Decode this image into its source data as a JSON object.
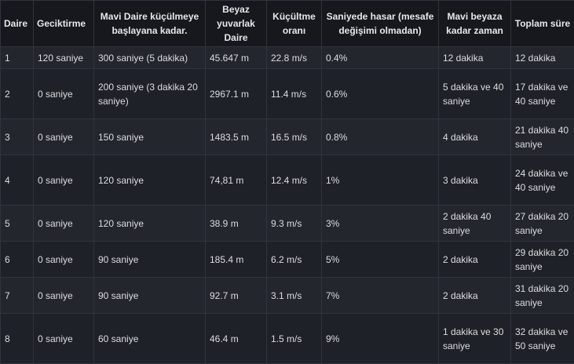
{
  "headers": [
    "Daire",
    "Geciktirme",
    "Mavi Daire küçülmeye başlayana kadar.",
    "Beyaz yuvarlak Daire",
    "Küçültme oranı",
    "Saniyede hasar (mesafe değişimi olmadan)",
    "Mavi beyaza kadar zaman",
    "Toplam süre"
  ],
  "rows": [
    [
      "1",
      "120 saniye",
      "300 saniye (5 dakika)",
      "45.647 m",
      "22.8 m/s",
      "0.4%",
      "12 dakika",
      "12 dakika"
    ],
    [
      "2",
      "0 saniye",
      "200 saniye (3 dakika 20 saniye)",
      "2967.1 m",
      "11.4 m/s",
      "0.6%",
      "5 dakika ve 40 saniye",
      "17 dakika ve 40 saniye"
    ],
    [
      "3",
      "0 saniye",
      "150 saniye",
      "1483.5 m",
      "16.5 m/s",
      "0.8%",
      "4 dakika",
      "21 dakika 40 saniye"
    ],
    [
      "4",
      "0 saniye",
      "120 saniye",
      "74,81 m",
      "12.4 m/s",
      "1%",
      "3 dakika",
      "24 dakika ve 40 saniye"
    ],
    [
      "5",
      "0 saniye",
      "120 saniye",
      "38.9 m",
      "9.3 m/s",
      "3%",
      "2 dakika 40 saniye",
      "27 dakika 20 saniye"
    ],
    [
      "6",
      "0 saniye",
      "90 saniye",
      "185.4 m",
      "6.2 m/s",
      "5%",
      "2 dakika",
      "29 dakika 20 saniye"
    ],
    [
      "7",
      "0 saniye",
      "90 saniye",
      "92.7 m",
      "3.1 m/s",
      "7%",
      "2 dakika",
      "31 dakika 20 saniye"
    ],
    [
      "8",
      "0 saniye",
      "60 saniye",
      "46.4 m",
      "1.5 m/s",
      "9%",
      "1 dakika ve 30 saniye",
      "32 dakika ve 50 saniye"
    ]
  ]
}
